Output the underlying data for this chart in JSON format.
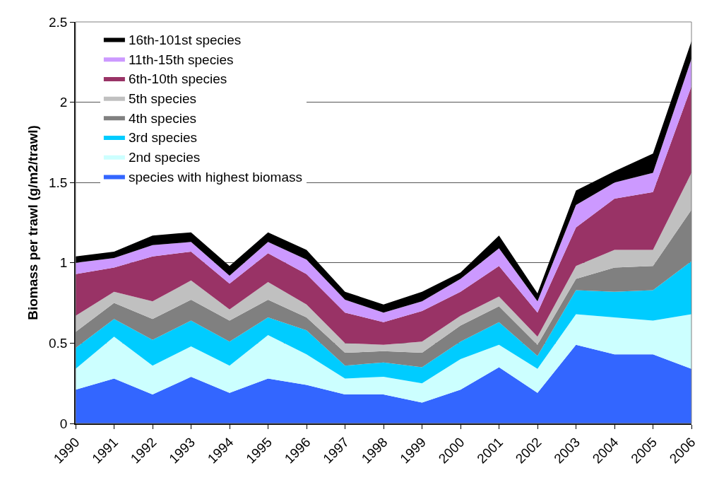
{
  "chart_data": {
    "type": "area",
    "stacked": true,
    "ylabel": "Biomass per trawl (g/m2/trawl)",
    "categories": [
      "1990",
      "1991",
      "1992",
      "1993",
      "1994",
      "1995",
      "1996",
      "1997",
      "1998",
      "1999",
      "2000",
      "2001",
      "2002",
      "2003",
      "2004",
      "2005",
      "2006"
    ],
    "ylim": [
      0,
      2.5
    ],
    "yticks": [
      0,
      0.5,
      1,
      1.5,
      2,
      2.5
    ],
    "grid": "y",
    "legend": "top left",
    "series": [
      {
        "name": "species with highest biomass",
        "color": "#3366ff",
        "values": [
          0.21,
          0.28,
          0.18,
          0.29,
          0.19,
          0.28,
          0.24,
          0.18,
          0.18,
          0.13,
          0.21,
          0.35,
          0.19,
          0.49,
          0.43,
          0.43,
          0.34
        ]
      },
      {
        "name": "2nd species",
        "color": "#ccffff",
        "values": [
          0.13,
          0.26,
          0.18,
          0.19,
          0.17,
          0.27,
          0.19,
          0.1,
          0.11,
          0.12,
          0.19,
          0.14,
          0.15,
          0.19,
          0.23,
          0.21,
          0.34
        ]
      },
      {
        "name": "3rd species",
        "color": "#00ccff",
        "values": [
          0.13,
          0.11,
          0.16,
          0.16,
          0.15,
          0.11,
          0.15,
          0.08,
          0.09,
          0.1,
          0.11,
          0.14,
          0.08,
          0.15,
          0.16,
          0.19,
          0.33
        ]
      },
      {
        "name": "4th species",
        "color": "#808080",
        "values": [
          0.1,
          0.1,
          0.13,
          0.13,
          0.13,
          0.11,
          0.08,
          0.08,
          0.07,
          0.09,
          0.1,
          0.1,
          0.07,
          0.07,
          0.15,
          0.15,
          0.32
        ]
      },
      {
        "name": "5th species",
        "color": "#c0c0c0",
        "values": [
          0.1,
          0.07,
          0.11,
          0.12,
          0.07,
          0.11,
          0.08,
          0.06,
          0.04,
          0.07,
          0.06,
          0.06,
          0.05,
          0.08,
          0.11,
          0.1,
          0.23
        ]
      },
      {
        "name": "6th-10th species",
        "color": "#993366",
        "values": [
          0.26,
          0.15,
          0.28,
          0.18,
          0.16,
          0.18,
          0.19,
          0.19,
          0.14,
          0.19,
          0.15,
          0.19,
          0.15,
          0.24,
          0.32,
          0.36,
          0.54
        ]
      },
      {
        "name": "11th-15th species",
        "color": "#cc99ff",
        "values": [
          0.07,
          0.06,
          0.07,
          0.06,
          0.05,
          0.07,
          0.09,
          0.08,
          0.06,
          0.06,
          0.08,
          0.11,
          0.07,
          0.14,
          0.1,
          0.12,
          0.17
        ]
      },
      {
        "name": "16th-101st species",
        "color": "#000000",
        "values": [
          0.04,
          0.04,
          0.06,
          0.06,
          0.06,
          0.06,
          0.06,
          0.05,
          0.05,
          0.06,
          0.04,
          0.08,
          0.05,
          0.09,
          0.07,
          0.12,
          0.11
        ]
      }
    ]
  }
}
